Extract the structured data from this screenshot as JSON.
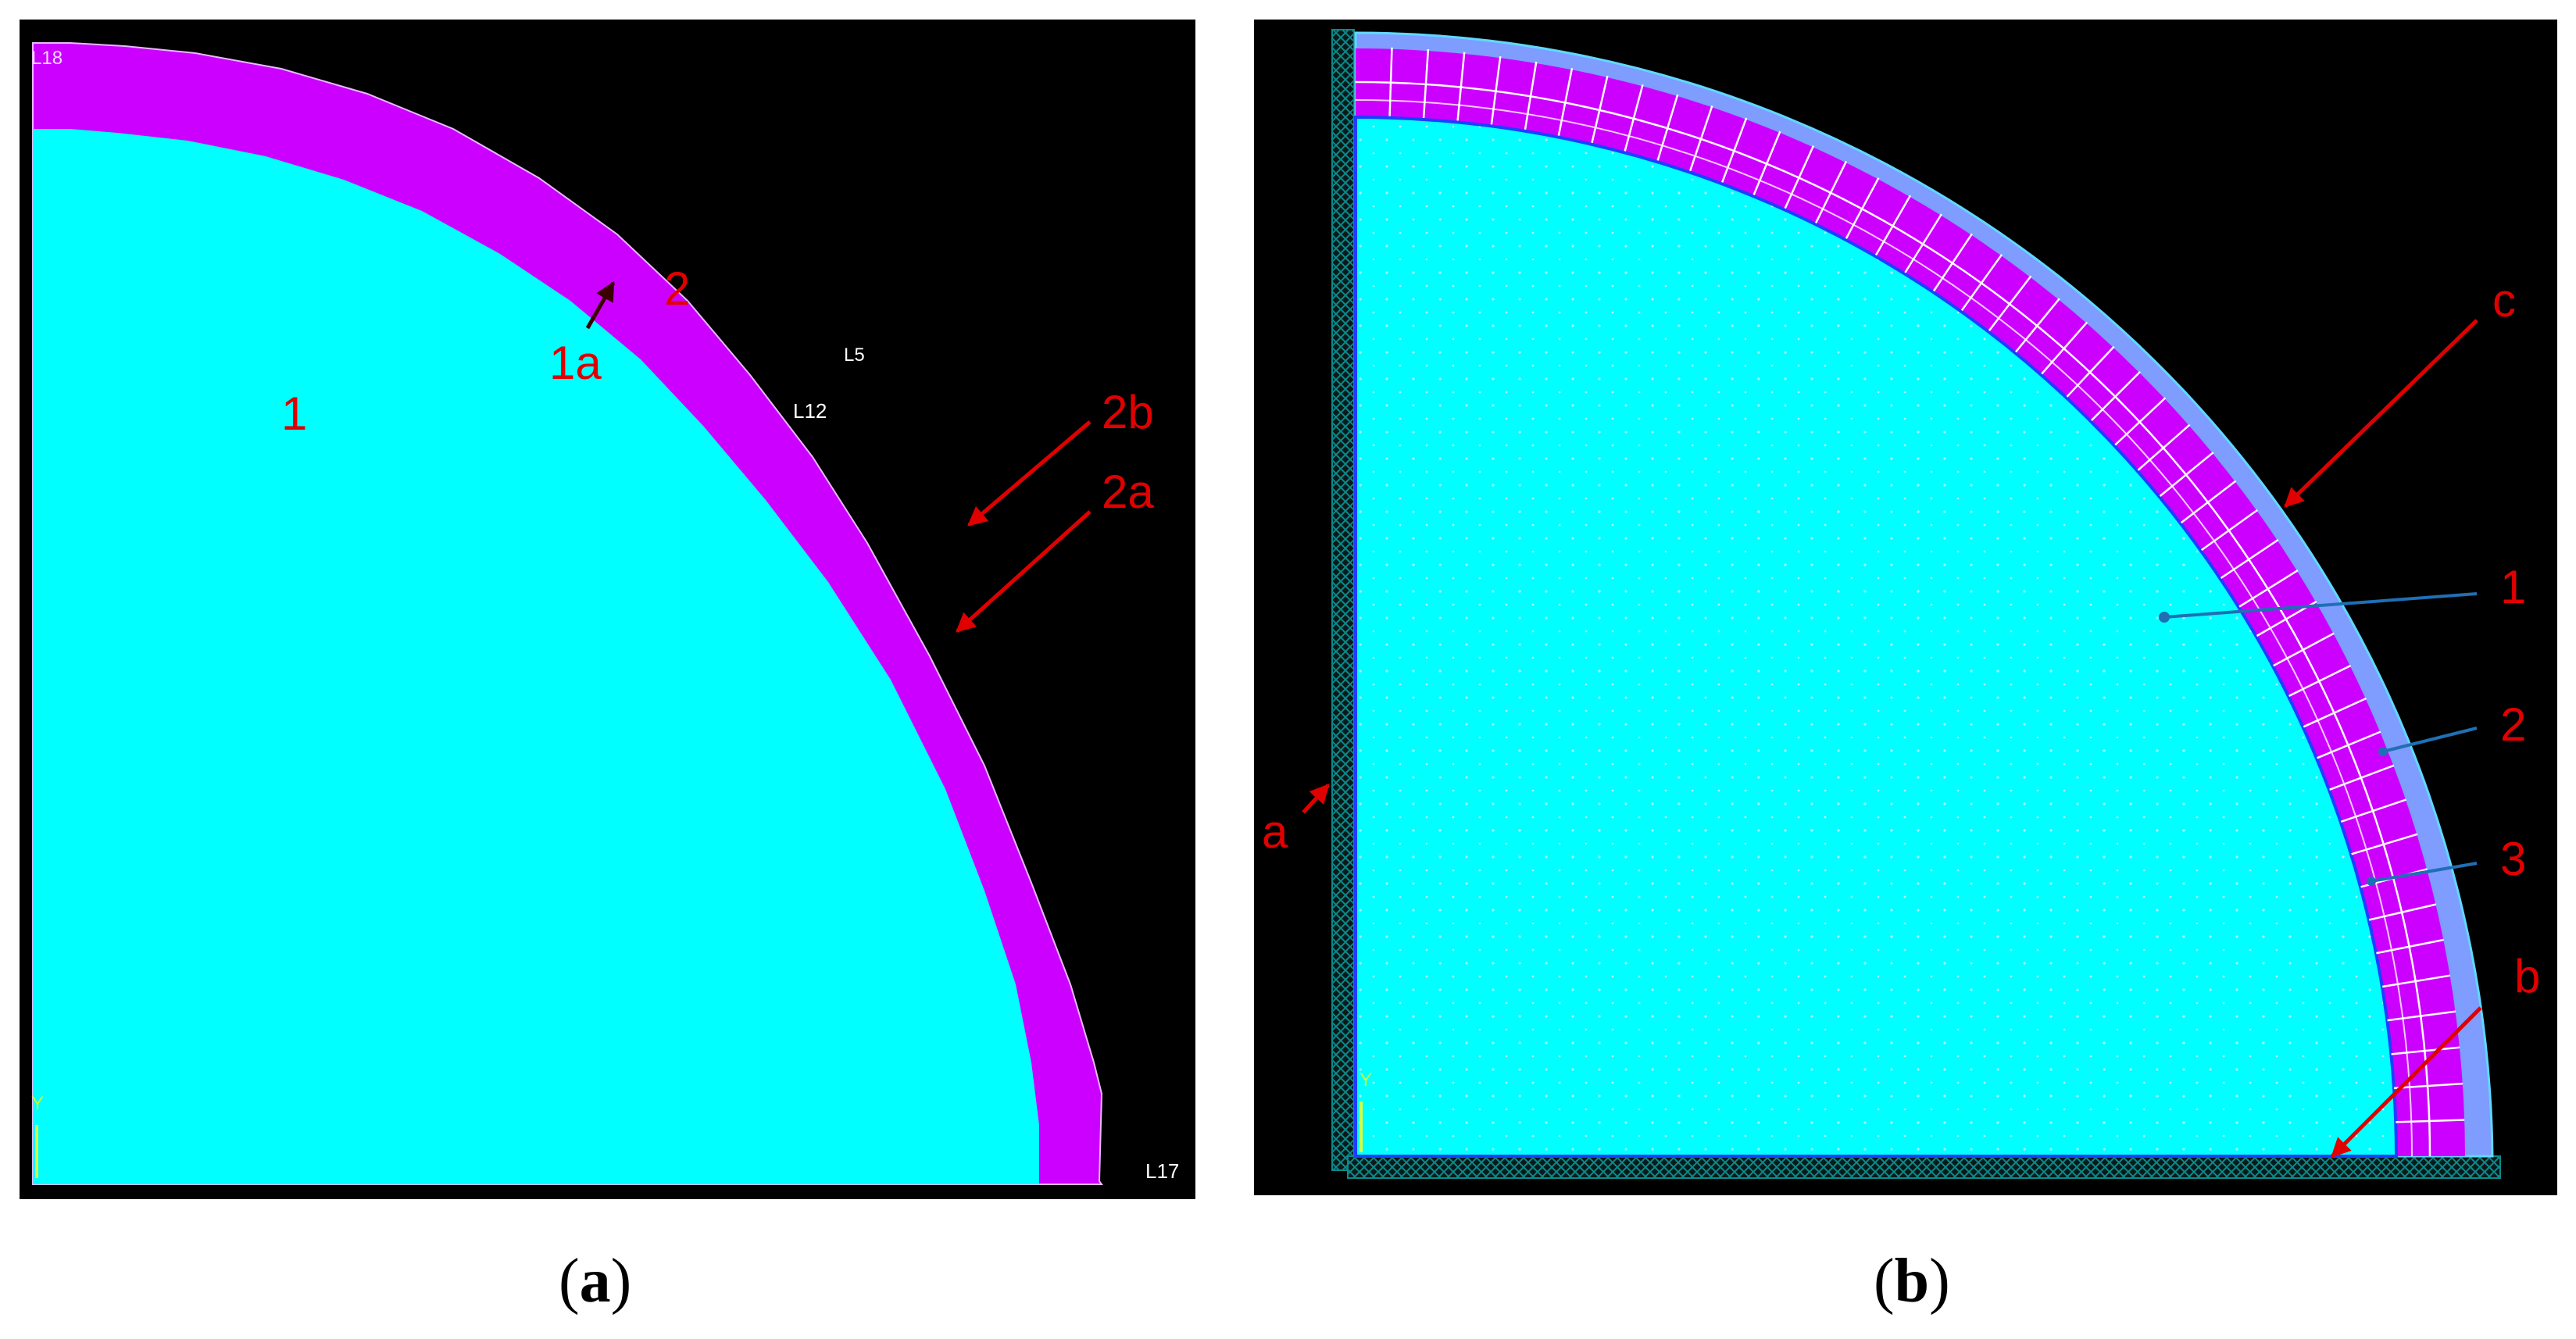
{
  "panel_a": {
    "caption_open": "(",
    "caption_letter": "a",
    "caption_close": ")",
    "lines": {
      "top_left": "L18",
      "outer": "L5",
      "inner": "L12",
      "bottom_right": "L17"
    },
    "region_labels": {
      "core": "1",
      "shell": "2",
      "core_edge": "1a",
      "shell_outer": "2b",
      "shell_inner": "2a"
    }
  },
  "panel_b": {
    "caption_open": "(",
    "caption_letter": "b",
    "caption_close": ")",
    "boundary_labels": {
      "left": "a",
      "bottom": "b",
      "outer": "c"
    },
    "region_labels": {
      "core": "1",
      "shell": "2",
      "outer_layer": "3"
    },
    "axis_label": "Y"
  },
  "colors": {
    "background": "#000000",
    "core": "#00FFFF",
    "shell": "#CC00FF",
    "mesh_lines": "#FFFFFF",
    "annotation": "#E00000",
    "leader": "#1F6FB5",
    "boundary_mesh": "#0B8A8A"
  }
}
